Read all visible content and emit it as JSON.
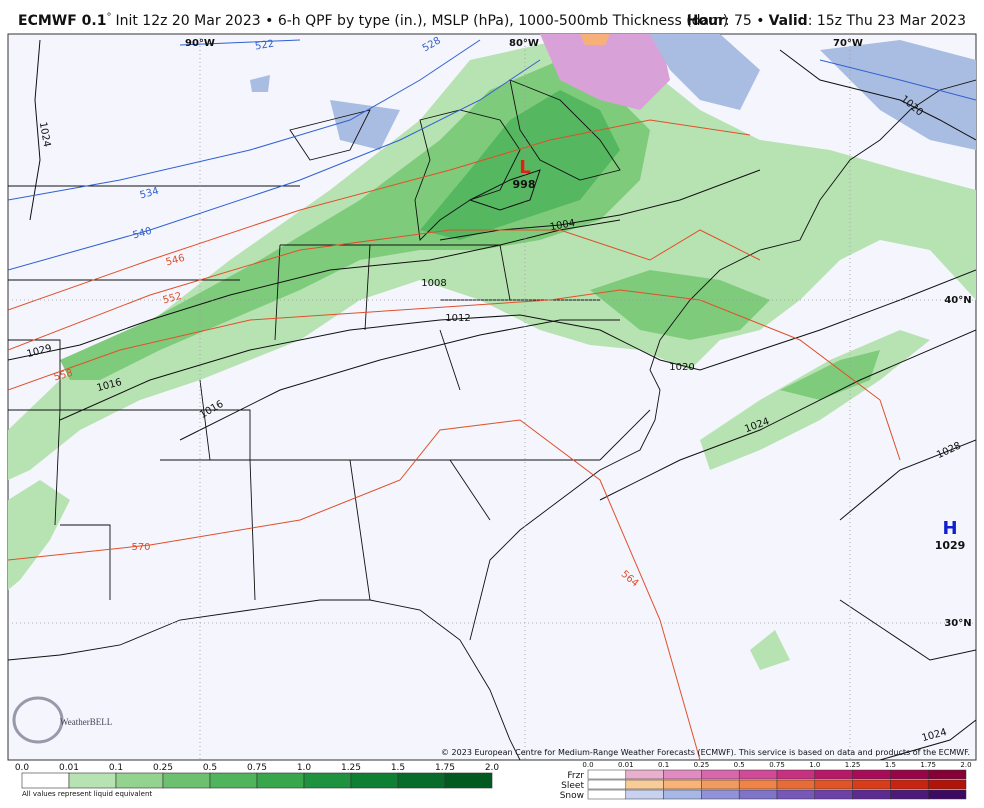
{
  "header": {
    "model": "ECMWF 0.1",
    "degree": "°",
    "description": "Init 12z 20 Mar 2023 • 6-h QPF by type (in.), MSLP (hPa), 1000-500mb Thickness (dam)",
    "hour_label": "Hour",
    "hour_value": ": 75 •",
    "valid_label": "Valid",
    "valid_value": ": 15z Thu 23 Mar 2023"
  },
  "map": {
    "longitudes": [
      "90°W",
      "80°W",
      "70°W"
    ],
    "latitudes": [
      "40°N",
      "30°N"
    ],
    "thickness_labels": [
      "522",
      "528",
      "534",
      "540",
      "546",
      "552",
      "558",
      "570",
      "564"
    ],
    "isobar_labels": [
      "1024",
      "1020",
      "1029",
      "1016",
      "1016",
      "1008",
      "1012",
      "1004",
      "1020",
      "1024",
      "1028",
      "1024"
    ],
    "low": {
      "symbol": "L",
      "pressure": "998"
    },
    "high": {
      "symbol": "H",
      "pressure": "1029"
    },
    "logo": "WeatherBELL",
    "credit": "© 2023 European Centre for Medium-Range Weather Forecasts (ECMWF). This service is based on data and products of the ECMWF."
  },
  "legend": {
    "qpf": {
      "ticks": [
        "0.0",
        "0.01",
        "0.1",
        "0.25",
        "0.5",
        "0.75",
        "1.0",
        "1.25",
        "1.5",
        "1.75",
        "2.0"
      ],
      "colors": [
        "#ffffff",
        "#b7e3b2",
        "#93d28f",
        "#6cc070",
        "#4fb45c",
        "#37a64c",
        "#1f923f",
        "#0f7f34",
        "#076c2a",
        "#035a21"
      ],
      "note": "All values represent liquid equivalent"
    },
    "mixed": {
      "ticks": [
        "0.0",
        "0.01",
        "0.1",
        "0.25",
        "0.5",
        "0.75",
        "1.0",
        "1.25",
        "1.5",
        "1.75",
        "2.0"
      ],
      "rows": [
        {
          "name": "Frzr",
          "colors": [
            "#ffffff",
            "#e8b0cc",
            "#e08cc0",
            "#d868ac",
            "#d04a98",
            "#c83080",
            "#b81868",
            "#a80c58",
            "#980448",
            "#860038"
          ]
        },
        {
          "name": "Sleet",
          "colors": [
            "#ffffff",
            "#f8cc98",
            "#f8b478",
            "#f09c60",
            "#f08448",
            "#e86c38",
            "#e05428",
            "#d83c18",
            "#c82410",
            "#b01408"
          ]
        },
        {
          "name": "Snow",
          "colors": [
            "#ffffff",
            "#c8d2f0",
            "#a8b8e6",
            "#9292d8",
            "#8074c8",
            "#7658b8",
            "#6c42a8",
            "#5c2a90",
            "#4c1a78",
            "#3c0a60"
          ]
        }
      ]
    }
  }
}
